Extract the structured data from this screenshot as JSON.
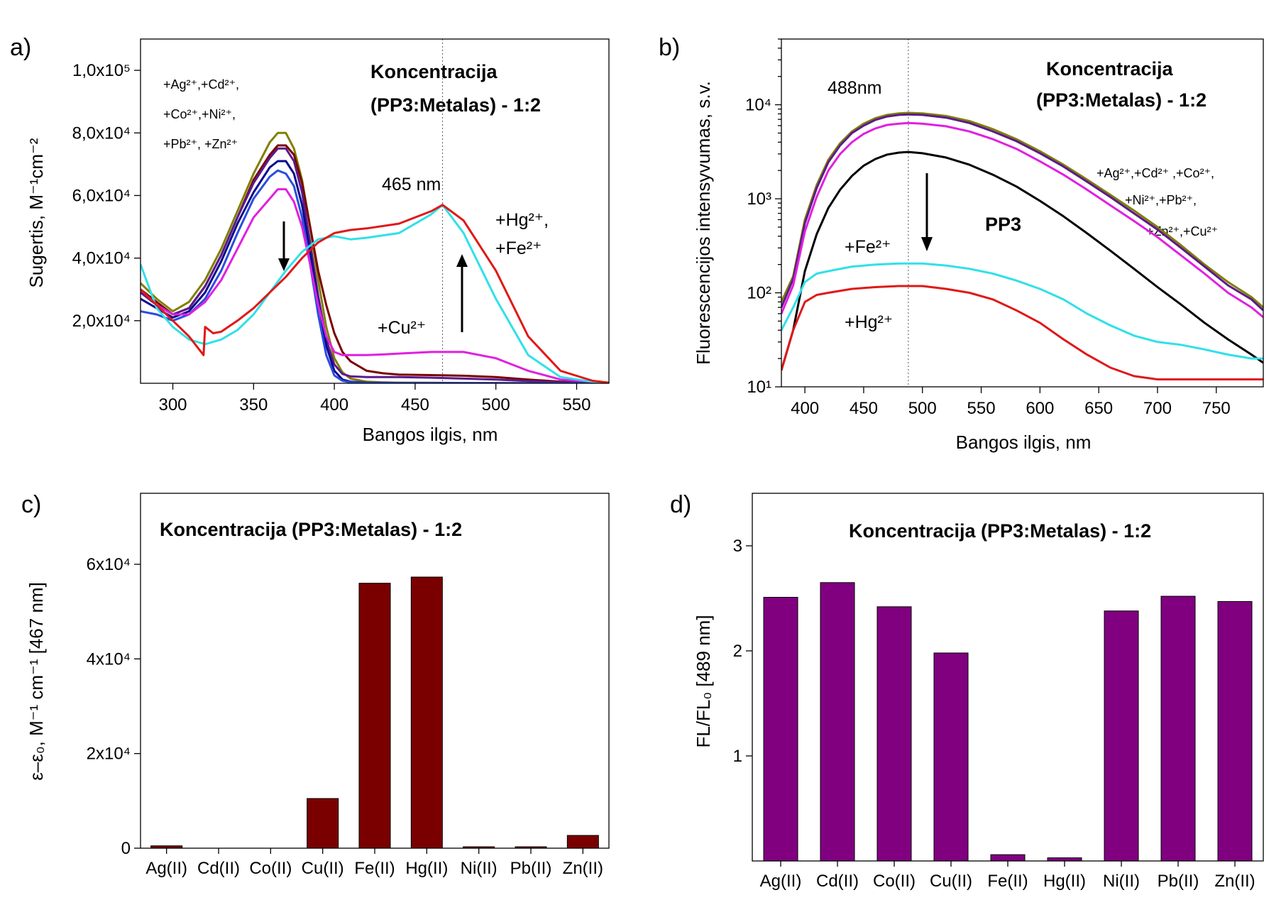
{
  "chart_data": [
    {
      "id": "a",
      "panel_label": "a)",
      "type": "line",
      "xlabel": "Bangos ilgis, nm",
      "ylabel": "Sugertis, M⁻¹cm⁻²",
      "xlim": [
        280,
        570
      ],
      "ylim": [
        0,
        110000
      ],
      "x_ticks": [
        300,
        350,
        400,
        450,
        500,
        550
      ],
      "y_ticks": [
        {
          "value": 20000,
          "label": "2,0x10⁴"
        },
        {
          "value": 40000,
          "label": "4,0x10⁴"
        },
        {
          "value": 60000,
          "label": "6,0x10⁴"
        },
        {
          "value": 80000,
          "label": "8,0x10⁴"
        },
        {
          "value": 100000,
          "label": "1,0x10⁵"
        }
      ],
      "reference_line_x": 467,
      "annotations": {
        "concentration": [
          "Koncentracija",
          "(PP3:Metalas) - 1:2"
        ],
        "peak": "465 nm",
        "group_ions": [
          "+Ag²⁺,+Cd²⁺,",
          "+Co²⁺,+Ni²⁺,",
          "+Pb²⁺, +Zn²⁺"
        ],
        "hg_fe": [
          "+Hg²⁺,",
          "+Fe²⁺"
        ],
        "cu": "+Cu²⁺"
      },
      "series": [
        {
          "color": "#808000",
          "x": [
            280,
            290,
            300,
            310,
            320,
            330,
            340,
            350,
            360,
            365,
            370,
            375,
            380,
            385,
            390,
            395,
            400,
            405,
            410,
            420,
            430,
            440,
            460,
            480,
            500,
            520,
            540,
            570
          ],
          "y": [
            32000,
            27000,
            23000,
            26000,
            33000,
            43000,
            55000,
            67000,
            77000,
            80000,
            80000,
            75000,
            65000,
            50000,
            33000,
            18000,
            8000,
            3500,
            1500,
            500,
            300,
            200,
            150,
            100,
            80,
            60,
            40,
            20
          ]
        },
        {
          "color": "#7a0000",
          "x": [
            280,
            290,
            300,
            310,
            320,
            330,
            340,
            350,
            360,
            365,
            370,
            375,
            380,
            385,
            390,
            395,
            400,
            405,
            410,
            420,
            430,
            440,
            460,
            480,
            500,
            520,
            540,
            570
          ],
          "y": [
            30000,
            26000,
            22000,
            24000,
            31000,
            41000,
            53000,
            65000,
            73000,
            76000,
            76000,
            73000,
            64000,
            50000,
            36000,
            25000,
            16000,
            10000,
            7000,
            4000,
            3200,
            2800,
            2600,
            2400,
            2000,
            1200,
            500,
            100
          ]
        },
        {
          "color": "#5c1a8c",
          "x": [
            280,
            290,
            300,
            310,
            320,
            330,
            340,
            350,
            360,
            365,
            370,
            375,
            380,
            385,
            390,
            395,
            400,
            405,
            410,
            420,
            430,
            440,
            460,
            480,
            500,
            520,
            540,
            570
          ],
          "y": [
            29000,
            25000,
            22000,
            24000,
            31000,
            41000,
            53000,
            64000,
            72000,
            75000,
            75000,
            71000,
            61000,
            45000,
            28000,
            14000,
            6000,
            3000,
            2200,
            2000,
            2000,
            2000,
            1800,
            1500,
            1200,
            700,
            300,
            50
          ]
        },
        {
          "color": "#0a0a8c",
          "x": [
            280,
            290,
            300,
            310,
            320,
            330,
            340,
            350,
            360,
            365,
            370,
            375,
            380,
            385,
            390,
            395,
            400,
            405,
            410,
            420,
            430,
            440,
            460,
            480,
            500,
            520,
            540,
            570
          ],
          "y": [
            27000,
            24000,
            21000,
            23000,
            29000,
            39000,
            51000,
            61000,
            69000,
            71000,
            71000,
            67000,
            57000,
            42000,
            26000,
            12000,
            4000,
            1200,
            500,
            200,
            150,
            100,
            80,
            60,
            40,
            30,
            20,
            10
          ]
        },
        {
          "color": "#2a4de0",
          "x": [
            280,
            290,
            300,
            310,
            320,
            330,
            340,
            350,
            360,
            365,
            370,
            375,
            380,
            385,
            390,
            395,
            400,
            405,
            410,
            420,
            430,
            440,
            460,
            480,
            500,
            520,
            540,
            570
          ],
          "y": [
            23000,
            22000,
            20000,
            22000,
            27000,
            36000,
            48000,
            59000,
            66000,
            68000,
            67000,
            63000,
            53000,
            38000,
            22000,
            9000,
            2500,
            800,
            300,
            100,
            80,
            60,
            40,
            30,
            20,
            10,
            5,
            0
          ]
        },
        {
          "color": "#e020e0",
          "x": [
            280,
            290,
            300,
            310,
            320,
            330,
            340,
            350,
            360,
            365,
            370,
            375,
            380,
            385,
            390,
            395,
            400,
            405,
            410,
            420,
            430,
            440,
            460,
            480,
            500,
            520,
            540,
            570
          ],
          "y": [
            30000,
            25000,
            22000,
            22000,
            26000,
            33000,
            43000,
            53000,
            59000,
            62000,
            62000,
            58000,
            50000,
            38000,
            25000,
            15000,
            10000,
            9000,
            9000,
            9000,
            9200,
            9500,
            10000,
            10000,
            8000,
            4000,
            1200,
            200
          ]
        },
        {
          "color": "#30e0e8",
          "x": [
            280,
            285,
            290,
            300,
            310,
            320,
            330,
            340,
            350,
            360,
            370,
            380,
            390,
            400,
            410,
            420,
            440,
            460,
            467,
            480,
            500,
            520,
            540,
            560,
            570
          ],
          "y": [
            38000,
            31000,
            24000,
            18000,
            14000,
            12500,
            14000,
            17000,
            22000,
            29000,
            36000,
            42000,
            46000,
            47000,
            46000,
            46500,
            48000,
            54000,
            57000,
            48000,
            27000,
            9000,
            2000,
            500,
            200
          ]
        },
        {
          "color": "#e01818",
          "x": [
            280,
            290,
            300,
            310,
            319,
            320,
            325,
            330,
            340,
            350,
            360,
            370,
            380,
            390,
            400,
            410,
            420,
            440,
            460,
            467,
            480,
            500,
            520,
            540,
            560,
            570
          ],
          "y": [
            30000,
            25000,
            20000,
            15000,
            9000,
            18000,
            16000,
            16500,
            20000,
            24000,
            29000,
            34000,
            40000,
            45000,
            48000,
            49000,
            49500,
            51000,
            55000,
            57000,
            52000,
            36000,
            15000,
            4000,
            800,
            200
          ]
        }
      ]
    },
    {
      "id": "b",
      "panel_label": "b)",
      "type": "line",
      "scale_y": "log",
      "xlabel": "Bangos ilgis, nm",
      "ylabel": "Fluorescencijos intensyvumas, s.v.",
      "xlim": [
        380,
        790
      ],
      "ylim": [
        10,
        50000
      ],
      "x_ticks": [
        400,
        450,
        500,
        550,
        600,
        650,
        700,
        750
      ],
      "y_ticks": [
        {
          "value": 10,
          "label": "10¹"
        },
        {
          "value": 100,
          "label": "10²"
        },
        {
          "value": 1000,
          "label": "10³"
        },
        {
          "value": 10000,
          "label": "10⁴"
        }
      ],
      "reference_line_x": 488,
      "annotations": {
        "concentration": [
          "Koncentracija",
          "(PP3:Metalas) - 1:2"
        ],
        "peak": "488nm",
        "group_ions": [
          "+Ag²⁺,+Cd²⁺ ,+Co²⁺,",
          "+Ni²⁺,+Pb²⁺,",
          "+Zn²⁺,+Cu²⁺"
        ],
        "pp3": "PP3",
        "fe": "+Fe²⁺",
        "hg": "+Hg²⁺"
      },
      "series": [
        {
          "color": "#808000",
          "x": [
            380,
            390,
            400,
            410,
            420,
            430,
            440,
            450,
            460,
            470,
            480,
            488,
            500,
            520,
            540,
            560,
            580,
            600,
            620,
            640,
            660,
            680,
            700,
            720,
            740,
            760,
            780,
            790
          ],
          "y": [
            80,
            150,
            600,
            1400,
            2600,
            3900,
            5200,
            6300,
            7200,
            7800,
            8100,
            8200,
            8100,
            7600,
            6700,
            5500,
            4300,
            3200,
            2300,
            1600,
            1100,
            750,
            500,
            320,
            200,
            130,
            90,
            70
          ]
        },
        {
          "color": "#5c1a8c",
          "x": [
            380,
            390,
            400,
            410,
            420,
            430,
            440,
            450,
            460,
            470,
            480,
            488,
            500,
            520,
            540,
            560,
            580,
            600,
            620,
            640,
            660,
            680,
            700,
            720,
            740,
            760,
            780,
            790
          ],
          "y": [
            70,
            140,
            550,
            1300,
            2450,
            3700,
            5000,
            6000,
            6900,
            7500,
            7800,
            7900,
            7800,
            7300,
            6400,
            5200,
            4100,
            3050,
            2200,
            1520,
            1040,
            700,
            470,
            300,
            190,
            120,
            85,
            65
          ]
        },
        {
          "color": "#e020e0",
          "x": [
            380,
            390,
            400,
            410,
            420,
            430,
            440,
            450,
            460,
            470,
            480,
            488,
            500,
            520,
            540,
            560,
            580,
            600,
            620,
            640,
            660,
            680,
            700,
            720,
            740,
            760,
            780,
            790
          ],
          "y": [
            60,
            120,
            450,
            1050,
            2000,
            3000,
            4000,
            4900,
            5600,
            6100,
            6300,
            6400,
            6300,
            5900,
            5200,
            4300,
            3400,
            2500,
            1800,
            1250,
            850,
            580,
            390,
            250,
            160,
            100,
            70,
            55
          ]
        },
        {
          "color": "#000000",
          "x": [
            380,
            390,
            400,
            410,
            420,
            430,
            440,
            450,
            460,
            470,
            480,
            488,
            500,
            520,
            540,
            560,
            580,
            600,
            620,
            640,
            660,
            680,
            700,
            720,
            740,
            760,
            780,
            790
          ],
          "y": [
            15,
            40,
            170,
            420,
            800,
            1250,
            1750,
            2250,
            2650,
            2950,
            3100,
            3150,
            3050,
            2750,
            2300,
            1800,
            1350,
            950,
            650,
            430,
            280,
            180,
            115,
            75,
            48,
            32,
            22,
            18
          ]
        },
        {
          "color": "#30e0e8",
          "x": [
            380,
            390,
            400,
            410,
            420,
            440,
            460,
            480,
            488,
            500,
            520,
            540,
            560,
            580,
            600,
            620,
            640,
            660,
            680,
            700,
            720,
            740,
            760,
            780,
            790
          ],
          "y": [
            40,
            70,
            130,
            160,
            170,
            190,
            200,
            205,
            205,
            205,
            195,
            180,
            160,
            135,
            110,
            85,
            60,
            45,
            35,
            30,
            28,
            25,
            22,
            20,
            20
          ]
        },
        {
          "color": "#e01818",
          "x": [
            380,
            390,
            400,
            410,
            420,
            440,
            460,
            480,
            488,
            500,
            520,
            540,
            560,
            580,
            600,
            620,
            640,
            660,
            680,
            700,
            720,
            740,
            760,
            780,
            790
          ],
          "y": [
            15,
            40,
            80,
            95,
            100,
            110,
            115,
            118,
            118,
            118,
            110,
            100,
            85,
            65,
            48,
            32,
            22,
            16,
            13,
            12,
            12,
            12,
            12,
            12,
            12
          ]
        }
      ]
    },
    {
      "id": "c",
      "panel_label": "c)",
      "type": "bar",
      "ylabel": "ε–ε₀, M⁻¹ cm⁻¹ [467 nm]",
      "title": "Koncentracija (PP3:Metalas) - 1:2",
      "categories": [
        "Ag(II)",
        "Cd(II)",
        "Co(II)",
        "Cu(II)",
        "Fe(II)",
        "Hg(II)",
        "Ni(II)",
        "Pb(II)",
        "Zn(II)"
      ],
      "values": [
        500,
        0,
        0,
        10500,
        56000,
        57300,
        300,
        300,
        2700
      ],
      "ylim": [
        0,
        75000
      ],
      "y_ticks": [
        {
          "value": 0,
          "label": "0"
        },
        {
          "value": 20000,
          "label": "2x10⁴"
        },
        {
          "value": 40000,
          "label": "4x10⁴"
        },
        {
          "value": 60000,
          "label": "6x10⁴"
        }
      ],
      "color": "#7a0000"
    },
    {
      "id": "d",
      "panel_label": "d)",
      "type": "bar",
      "ylabel": "FL/FL₀ [489 nm]",
      "title": "Koncentracija (PP3:Metalas) - 1:2",
      "categories": [
        "Ag(II)",
        "Cd(II)",
        "Co(II)",
        "Cu(II)",
        "Fe(II)",
        "Hg(II)",
        "Ni(II)",
        "Pb(II)",
        "Zn(II)"
      ],
      "values": [
        2.51,
        2.65,
        2.42,
        1.98,
        0.06,
        0.03,
        2.38,
        2.52,
        2.47
      ],
      "ylim": [
        0,
        3.5
      ],
      "y_ticks": [
        {
          "value": 1,
          "label": "1"
        },
        {
          "value": 2,
          "label": "2"
        },
        {
          "value": 3,
          "label": "3"
        }
      ],
      "color": "#800080"
    }
  ]
}
